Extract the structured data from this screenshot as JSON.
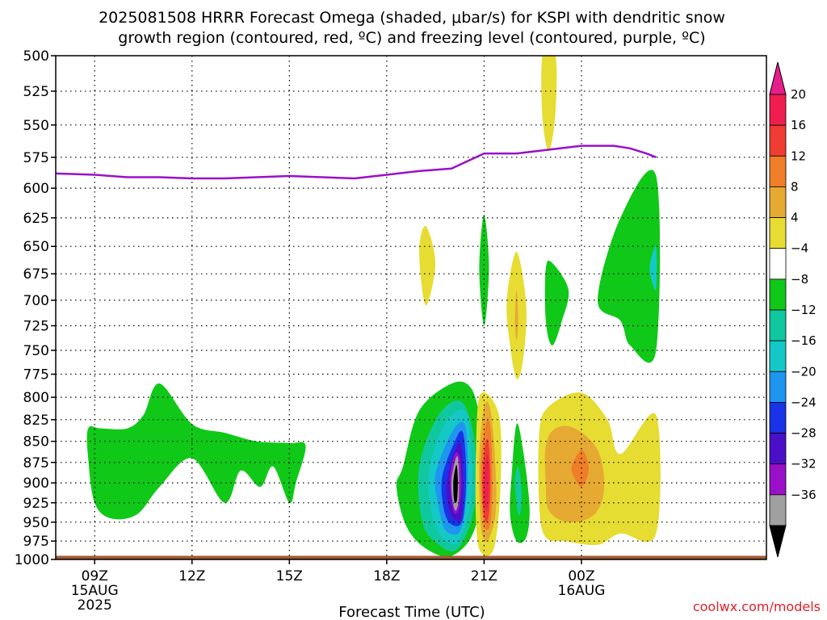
{
  "chart_data": {
    "type": "contour",
    "title_line1": "2025081508 HRRR Forecast Omega (shaded, μbar/s) for KSPI with dendritic snow",
    "title_line2": "growth region (contoured, red, ºC) and freezing level (contoured, purple, ºC)",
    "xlabel": "Forecast Time (UTC)",
    "credit": "coolwx.com/models",
    "y_axis": {
      "type": "pressure-log",
      "range": [
        500,
        1000
      ],
      "ticks": [
        500,
        525,
        550,
        575,
        600,
        625,
        650,
        675,
        700,
        725,
        750,
        775,
        800,
        825,
        850,
        875,
        900,
        925,
        950,
        975,
        1000
      ]
    },
    "x_axis": {
      "range_hours": [
        7.8,
        29.7
      ],
      "ticks": [
        {
          "hour": 9,
          "label": "09Z",
          "sub1": "15AUG",
          "sub2": "2025"
        },
        {
          "hour": 12,
          "label": "12Z",
          "sub1": "",
          "sub2": ""
        },
        {
          "hour": 15,
          "label": "15Z",
          "sub1": "",
          "sub2": ""
        },
        {
          "hour": 18,
          "label": "18Z",
          "sub1": "",
          "sub2": ""
        },
        {
          "hour": 21,
          "label": "21Z",
          "sub1": "",
          "sub2": ""
        },
        {
          "hour": 24,
          "label": "00Z",
          "sub1": "16AUG",
          "sub2": ""
        }
      ]
    },
    "grid": true,
    "colorbar": {
      "levels": [
        -36,
        -32,
        -28,
        -24,
        -20,
        -16,
        -12,
        -8,
        -4,
        4,
        8,
        12,
        16,
        20
      ],
      "colors": [
        "#000000",
        "#a0a0a0",
        "#9a10c8",
        "#4a10c8",
        "#1a32e8",
        "#1e96f0",
        "#14c8c8",
        "#10c8a0",
        "#10c818",
        "#ffffff",
        "#e6dc32",
        "#e6aa32",
        "#f07d28",
        "#f03c32",
        "#f01e50",
        "#e61e8c"
      ],
      "low_arrow_color": "#000000",
      "high_arrow_color": "#e61e8c"
    },
    "freezing_level": {
      "name": "freezing level",
      "color": "#9a10c8",
      "points": [
        [
          7.8,
          588
        ],
        [
          9,
          589
        ],
        [
          10,
          591
        ],
        [
          11,
          591
        ],
        [
          12,
          592
        ],
        [
          13,
          592
        ],
        [
          14,
          591
        ],
        [
          15,
          590
        ],
        [
          16,
          591
        ],
        [
          17,
          592
        ],
        [
          18,
          589
        ],
        [
          19,
          586
        ],
        [
          20,
          584
        ],
        [
          21,
          572
        ],
        [
          22,
          572
        ],
        [
          23,
          569
        ],
        [
          24,
          566
        ],
        [
          25,
          566
        ],
        [
          25.5,
          568
        ],
        [
          26,
          572
        ],
        [
          26.3,
          575
        ]
      ]
    },
    "surface_terrain": {
      "pressure": 995,
      "color": "#a05a32"
    },
    "omega_regions": [
      {
        "value": 4,
        "color": "#e6dc32",
        "points": [
          [
            22.8,
            500
          ],
          [
            23.2,
            500
          ],
          [
            23.2,
            540
          ],
          [
            23.0,
            570
          ],
          [
            22.8,
            545
          ]
        ]
      },
      {
        "value": -8,
        "color": "#10c818",
        "points": [
          [
            24.5,
            700
          ],
          [
            25.2,
            625
          ],
          [
            26.3,
            590
          ],
          [
            26.3,
            750
          ],
          [
            25.5,
            745
          ],
          [
            25.2,
            720
          ]
        ]
      },
      {
        "value": -12,
        "color": "#14c8c8",
        "points": [
          [
            26.1,
            670
          ],
          [
            26.3,
            650
          ],
          [
            26.3,
            690
          ]
        ]
      },
      {
        "value": 4,
        "color": "#e6dc32",
        "points": [
          [
            19,
            655
          ],
          [
            19.2,
            632
          ],
          [
            19.5,
            665
          ],
          [
            19.2,
            705
          ]
        ]
      },
      {
        "value": -8,
        "color": "#10c818",
        "points": [
          [
            20.85,
            670
          ],
          [
            21,
            622
          ],
          [
            21.15,
            670
          ],
          [
            21,
            725
          ]
        ]
      },
      {
        "value": 4,
        "color": "#e6dc32",
        "points": [
          [
            21.7,
            700
          ],
          [
            22,
            655
          ],
          [
            22.3,
            705
          ],
          [
            22.2,
            760
          ],
          [
            22,
            780
          ],
          [
            21.8,
            745
          ]
        ]
      },
      {
        "value": 8,
        "color": "#e6aa32",
        "points": [
          [
            21.95,
            720
          ],
          [
            22,
            690
          ],
          [
            22.05,
            720
          ],
          [
            22,
            740
          ]
        ]
      },
      {
        "value": -8,
        "color": "#10c818",
        "points": [
          [
            22.9,
            670
          ],
          [
            23.1,
            665
          ],
          [
            23.6,
            690
          ],
          [
            23.4,
            720
          ],
          [
            23.1,
            745
          ],
          [
            22.9,
            720
          ]
        ]
      },
      {
        "value": -8,
        "color": "#10c818",
        "points": [
          [
            8.8,
            835
          ],
          [
            9.2,
            835
          ],
          [
            10,
            835
          ],
          [
            10.5,
            820
          ],
          [
            11,
            785
          ],
          [
            12,
            830
          ],
          [
            13,
            840
          ],
          [
            14,
            850
          ],
          [
            15,
            852
          ],
          [
            15.5,
            855
          ],
          [
            15.2,
            900
          ],
          [
            15,
            925
          ],
          [
            14.5,
            880
          ],
          [
            14.1,
            905
          ],
          [
            13.5,
            885
          ],
          [
            13,
            925
          ],
          [
            12,
            870
          ],
          [
            11,
            905
          ],
          [
            10.3,
            940
          ],
          [
            9.5,
            945
          ],
          [
            9,
            925
          ],
          [
            8.8,
            870
          ]
        ]
      },
      {
        "value": -8,
        "color": "#10c818",
        "points": [
          [
            18.5,
            880
          ],
          [
            19,
            815
          ],
          [
            20,
            785
          ],
          [
            20.6,
            790
          ],
          [
            20.9,
            830
          ],
          [
            21,
            880
          ],
          [
            20.7,
            960
          ],
          [
            20,
            995
          ],
          [
            19.2,
            985
          ],
          [
            18.6,
            955
          ],
          [
            18.3,
            905
          ]
        ]
      },
      {
        "value": -12,
        "color": "#10c8a0",
        "points": [
          [
            19,
            880
          ],
          [
            19.6,
            820
          ],
          [
            20.3,
            805
          ],
          [
            20.7,
            850
          ],
          [
            20.7,
            930
          ],
          [
            20.2,
            985
          ],
          [
            19.6,
            980
          ],
          [
            19.1,
            950
          ]
        ]
      },
      {
        "value": -16,
        "color": "#14c8c8",
        "points": [
          [
            19.3,
            885
          ],
          [
            19.8,
            830
          ],
          [
            20.4,
            815
          ],
          [
            20.6,
            860
          ],
          [
            20.6,
            920
          ],
          [
            20.2,
            975
          ],
          [
            19.7,
            970
          ],
          [
            19.4,
            940
          ]
        ]
      },
      {
        "value": -20,
        "color": "#1e96f0",
        "points": [
          [
            19.5,
            890
          ],
          [
            20,
            840
          ],
          [
            20.4,
            830
          ],
          [
            20.5,
            880
          ],
          [
            20.4,
            940
          ],
          [
            20.2,
            965
          ],
          [
            19.8,
            960
          ],
          [
            19.6,
            930
          ]
        ]
      },
      {
        "value": -24,
        "color": "#1a32e8",
        "points": [
          [
            19.7,
            895
          ],
          [
            20.1,
            850
          ],
          [
            20.35,
            840
          ],
          [
            20.45,
            890
          ],
          [
            20.35,
            945
          ],
          [
            20.1,
            955
          ],
          [
            19.8,
            940
          ]
        ]
      },
      {
        "value": -28,
        "color": "#4a10c8",
        "points": [
          [
            19.85,
            900
          ],
          [
            20.1,
            860
          ],
          [
            20.3,
            855
          ],
          [
            20.35,
            900
          ],
          [
            20.3,
            945
          ],
          [
            20.05,
            945
          ],
          [
            19.9,
            930
          ]
        ]
      },
      {
        "value": -32,
        "color": "#9a10c8",
        "points": [
          [
            19.95,
            895
          ],
          [
            20.1,
            865
          ],
          [
            20.25,
            870
          ],
          [
            20.3,
            905
          ],
          [
            20.2,
            935
          ],
          [
            20.05,
            935
          ]
        ]
      },
      {
        "value": -36,
        "color": "#a0a0a0",
        "points": [
          [
            20.0,
            895
          ],
          [
            20.15,
            868
          ],
          [
            20.22,
            880
          ],
          [
            20.22,
            920
          ],
          [
            20.12,
            935
          ],
          [
            20.02,
            920
          ]
        ]
      },
      {
        "value": -40,
        "color": "#000000",
        "points": [
          [
            20.06,
            895
          ],
          [
            20.15,
            878
          ],
          [
            20.19,
            895
          ],
          [
            20.17,
            920
          ],
          [
            20.1,
            925
          ],
          [
            20.06,
            915
          ]
        ]
      },
      {
        "value": 4,
        "color": "#e6dc32",
        "points": [
          [
            20.75,
            860
          ],
          [
            20.85,
            800
          ],
          [
            21.2,
            800
          ],
          [
            21.5,
            830
          ],
          [
            21.5,
            910
          ],
          [
            21.3,
            985
          ],
          [
            20.9,
            990
          ],
          [
            20.75,
            950
          ]
        ]
      },
      {
        "value": 8,
        "color": "#e6aa32",
        "points": [
          [
            20.85,
            870
          ],
          [
            21,
            810
          ],
          [
            21.2,
            815
          ],
          [
            21.35,
            880
          ],
          [
            21.35,
            940
          ],
          [
            21.1,
            975
          ],
          [
            20.9,
            955
          ]
        ]
      },
      {
        "value": 12,
        "color": "#f07d28",
        "points": [
          [
            20.9,
            880
          ],
          [
            21.05,
            830
          ],
          [
            21.2,
            835
          ],
          [
            21.25,
            900
          ],
          [
            21.2,
            950
          ],
          [
            21.05,
            960
          ],
          [
            20.95,
            940
          ]
        ]
      },
      {
        "value": 16,
        "color": "#f03c32",
        "points": [
          [
            20.95,
            890
          ],
          [
            21.05,
            850
          ],
          [
            21.15,
            855
          ],
          [
            21.2,
            900
          ],
          [
            21.15,
            940
          ],
          [
            21.05,
            950
          ],
          [
            20.97,
            930
          ]
        ]
      },
      {
        "value": 20,
        "color": "#f01e50",
        "points": [
          [
            21.0,
            895
          ],
          [
            21.08,
            865
          ],
          [
            21.14,
            880
          ],
          [
            21.14,
            915
          ],
          [
            21.08,
            935
          ],
          [
            21.0,
            920
          ]
        ]
      },
      {
        "value": -8,
        "color": "#10c818",
        "points": [
          [
            21.85,
            890
          ],
          [
            22,
            830
          ],
          [
            22.2,
            860
          ],
          [
            22.4,
            930
          ],
          [
            22.3,
            970
          ],
          [
            22,
            975
          ],
          [
            21.8,
            940
          ]
        ]
      },
      {
        "value": -12,
        "color": "#10c8a0",
        "points": [
          [
            21.95,
            900
          ],
          [
            22.05,
            880
          ],
          [
            22.15,
            905
          ],
          [
            22.15,
            930
          ],
          [
            22.05,
            940
          ]
        ]
      },
      {
        "value": 4,
        "color": "#e6dc32",
        "points": [
          [
            22.7,
            840
          ],
          [
            23,
            810
          ],
          [
            24,
            795
          ],
          [
            24.8,
            825
          ],
          [
            25.2,
            865
          ],
          [
            26.3,
            820
          ],
          [
            26.3,
            965
          ],
          [
            25.2,
            965
          ],
          [
            24.5,
            980
          ],
          [
            23.5,
            975
          ],
          [
            22.9,
            970
          ],
          [
            22.7,
            930
          ]
        ]
      },
      {
        "value": 8,
        "color": "#e6aa32",
        "points": [
          [
            22.9,
            855
          ],
          [
            23.2,
            835
          ],
          [
            23.8,
            835
          ],
          [
            24.5,
            860
          ],
          [
            24.7,
            905
          ],
          [
            24.4,
            940
          ],
          [
            23.6,
            950
          ],
          [
            23,
            935
          ],
          [
            22.9,
            900
          ]
        ]
      },
      {
        "value": 12,
        "color": "#f07d28",
        "points": [
          [
            23.7,
            880
          ],
          [
            24,
            860
          ],
          [
            24.2,
            875
          ],
          [
            24.2,
            890
          ],
          [
            24,
            905
          ],
          [
            23.8,
            895
          ]
        ]
      }
    ]
  }
}
